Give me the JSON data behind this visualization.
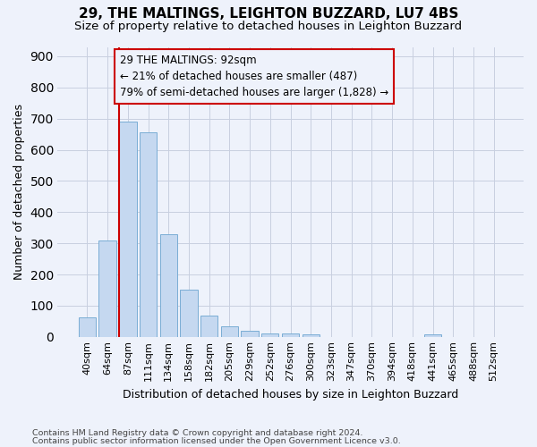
{
  "title1": "29, THE MALTINGS, LEIGHTON BUZZARD, LU7 4BS",
  "title2": "Size of property relative to detached houses in Leighton Buzzard",
  "xlabel": "Distribution of detached houses by size in Leighton Buzzard",
  "ylabel": "Number of detached properties",
  "footnote_line1": "Contains HM Land Registry data © Crown copyright and database right 2024.",
  "footnote_line2": "Contains public sector information licensed under the Open Government Licence v3.0.",
  "bar_labels": [
    "40sqm",
    "64sqm",
    "87sqm",
    "111sqm",
    "134sqm",
    "158sqm",
    "182sqm",
    "205sqm",
    "229sqm",
    "252sqm",
    "276sqm",
    "300sqm",
    "323sqm",
    "347sqm",
    "370sqm",
    "394sqm",
    "418sqm",
    "441sqm",
    "465sqm",
    "488sqm",
    "512sqm"
  ],
  "bar_values": [
    63,
    310,
    690,
    655,
    330,
    152,
    68,
    35,
    20,
    12,
    10,
    8,
    0,
    0,
    0,
    0,
    0,
    9,
    0,
    0,
    0
  ],
  "bar_color": "#c5d8f0",
  "bar_edge_color": "#7aadd4",
  "vline_bar_index": 2,
  "vline_color": "#cc0000",
  "annotation_line1": "29 THE MALTINGS: 92sqm",
  "annotation_line2": "← 21% of detached houses are smaller (487)",
  "annotation_line3": "79% of semi-detached houses are larger (1,828) →",
  "annotation_box_edgecolor": "#cc0000",
  "ylim_max": 930,
  "yticks": [
    0,
    100,
    200,
    300,
    400,
    500,
    600,
    700,
    800,
    900
  ],
  "bg_color": "#eef2fb",
  "grid_color": "#c8cfe0",
  "title1_fontsize": 11,
  "title2_fontsize": 9.5,
  "axis_label_fontsize": 9,
  "tick_fontsize": 8,
  "annotation_fontsize": 8.5,
  "footnote_fontsize": 6.8
}
